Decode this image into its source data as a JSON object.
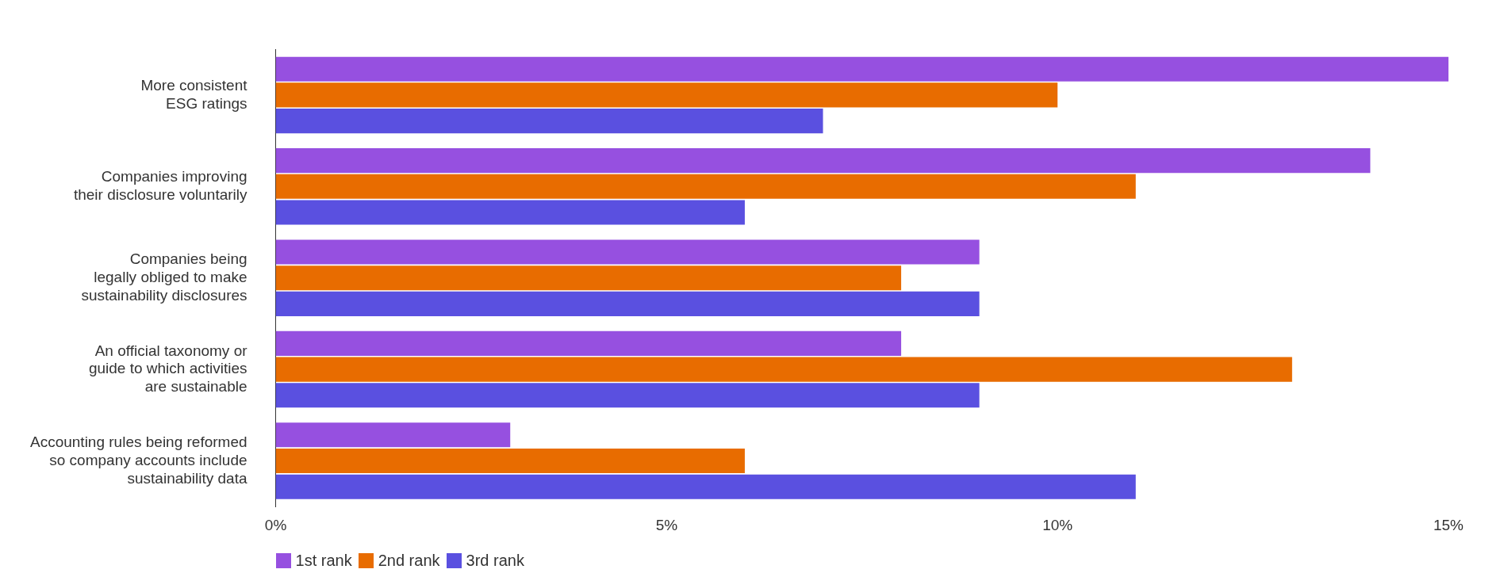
{
  "chart_data": {
    "type": "bar",
    "orientation": "horizontal",
    "categories": [
      "More consistent\nESG ratings",
      "Companies improving\ntheir disclosure voluntarily",
      "Companies being\nlegally obliged to make\nsustainability disclosures",
      "An official taxonomy or\nguide to which activities\nare sustainable",
      "Accounting rules being reformed\nso company accounts include\nsustainability data"
    ],
    "series": [
      {
        "name": "1st rank",
        "color": "#9650e0",
        "values": [
          15,
          14,
          9,
          8,
          3
        ]
      },
      {
        "name": "2nd rank",
        "color": "#e86c00",
        "values": [
          10,
          11,
          8,
          13,
          6
        ]
      },
      {
        "name": "3rd rank",
        "color": "#5a50e0",
        "values": [
          7,
          6,
          9,
          9,
          11
        ]
      }
    ],
    "xlim": [
      0,
      15
    ],
    "xticks": [
      {
        "value": 0,
        "label": "0%"
      },
      {
        "value": 5,
        "label": "5%"
      },
      {
        "value": 10,
        "label": "10%"
      },
      {
        "value": 15,
        "label": "15%"
      }
    ],
    "grid": false,
    "legend": "bottom"
  }
}
